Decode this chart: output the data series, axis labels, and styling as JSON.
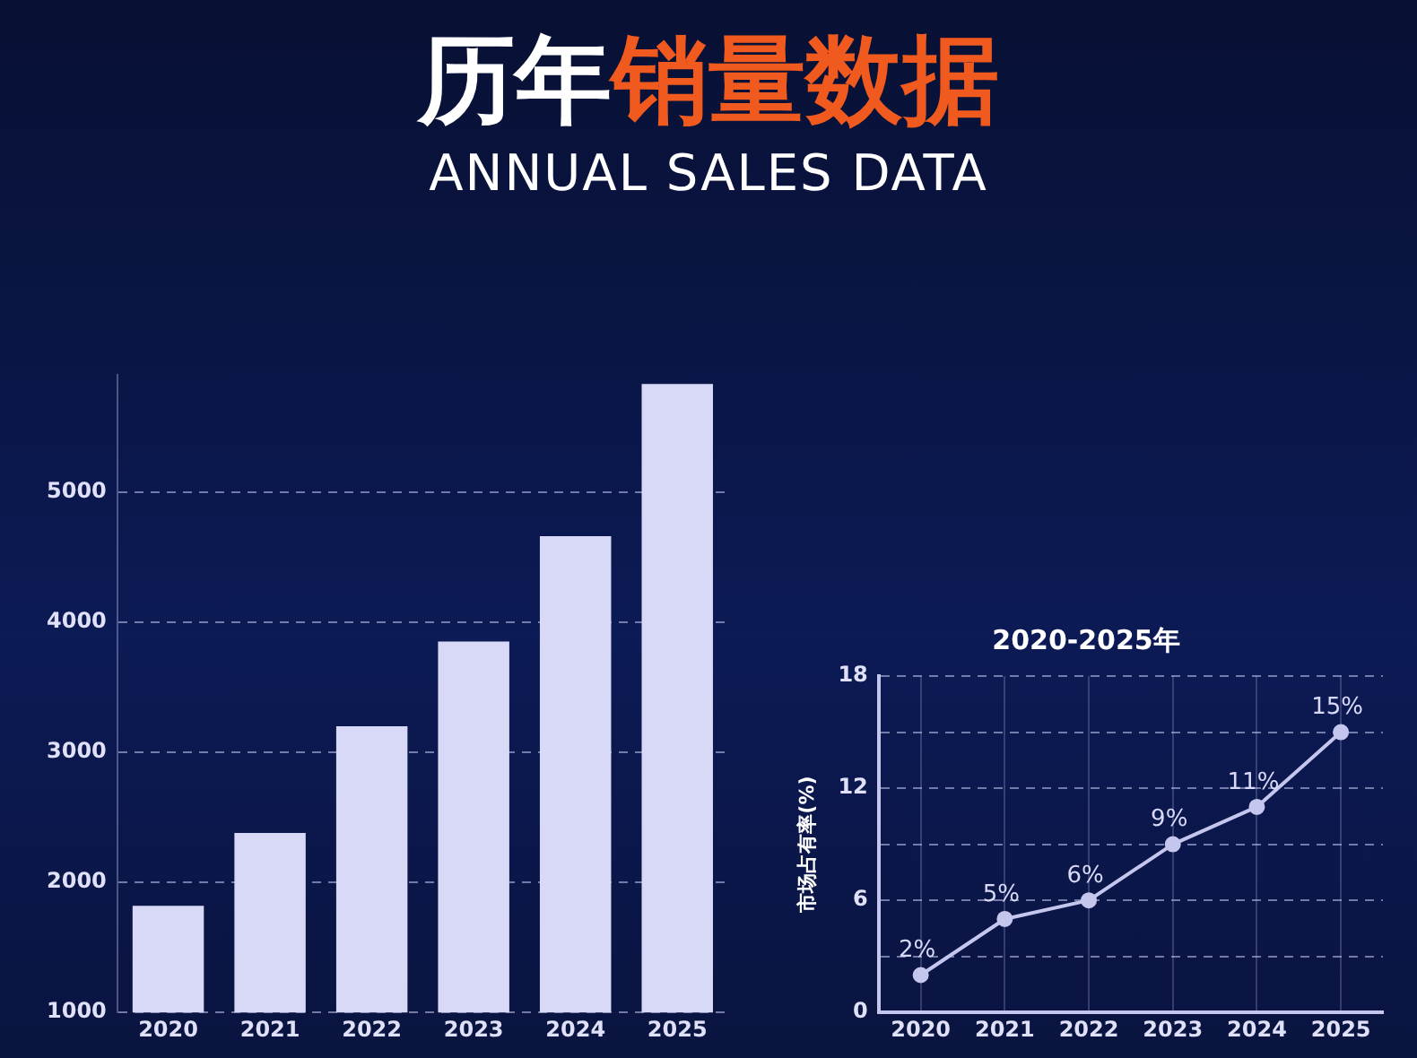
{
  "chart_data": [
    {
      "type": "bar",
      "title": "历年销量数据",
      "subtitle": "ANNUAL SALES DATA",
      "categories": [
        "2020",
        "2021",
        "2022",
        "2023",
        "2024",
        "2025"
      ],
      "values": [
        1820,
        2380,
        3200,
        3850,
        4660,
        5830
      ],
      "color": "#d8d9f6",
      "ylim": [
        1000,
        5900
      ],
      "yticks": [
        1000,
        2000,
        3000,
        4000,
        5000
      ],
      "grid": "y"
    },
    {
      "type": "line",
      "title": "2020-2025年",
      "ylabel": "市场占有率(%)",
      "categories": [
        "2020",
        "2021",
        "2022",
        "2023",
        "2024",
        "2025"
      ],
      "values": [
        2,
        5,
        6,
        9,
        11,
        15
      ],
      "value_labels": [
        "2%",
        "5%",
        "6%",
        "9%",
        "11%",
        "15%"
      ],
      "color": "#c4c6ee",
      "marker": "circle",
      "ylim": [
        0,
        18
      ],
      "yticks": [
        0,
        {
          "value": 3,
          "label": null
        },
        6,
        {
          "value": 9,
          "label": null
        },
        12,
        {
          "value": 15,
          "label": null
        },
        18
      ],
      "grid": true
    }
  ]
}
